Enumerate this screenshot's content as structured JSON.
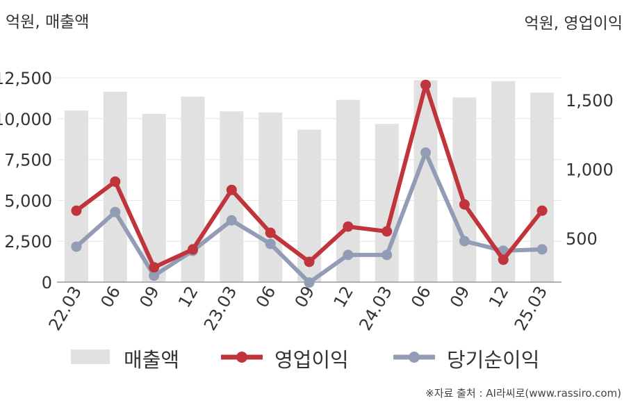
{
  "units": {
    "left": "억원, 매출액",
    "right": "억원, 영업이익"
  },
  "legend": {
    "revenue": "매출액",
    "op_profit": "영업이익",
    "net_profit": "당기순이익"
  },
  "source": "※자료 출처 : AI라씨로(www.rassiro.com)",
  "colors": {
    "bar": "#e1e1e1",
    "op_line": "#c0343b",
    "net_line": "#929cb4",
    "grid": "#e6e6e6",
    "axis": "#999999",
    "text": "#333333"
  },
  "chart_data": {
    "type": "bar",
    "categories": [
      "22.03",
      "06",
      "09",
      "12",
      "23.03",
      "06",
      "09",
      "12",
      "24.03",
      "06",
      "09",
      "12",
      "25.03"
    ],
    "y_left": {
      "ticks": [
        "0",
        "2,500",
        "5,000",
        "7,500",
        "10,000",
        "12,500"
      ],
      "lim": [
        0,
        12500
      ]
    },
    "y_right": {
      "ticks": [
        "500",
        "1,000",
        "1,500"
      ],
      "lim": [
        -100,
        1660
      ]
    },
    "series": [
      {
        "name": "매출액",
        "axis": "left",
        "type": "bar",
        "values": [
          10500,
          11650,
          10300,
          11350,
          10450,
          10380,
          9330,
          11150,
          9680,
          12350,
          11300,
          12300,
          11600
        ]
      },
      {
        "name": "영업이익",
        "axis": "right",
        "type": "line",
        "values": [
          700,
          910,
          290,
          420,
          850,
          540,
          330,
          585,
          550,
          1610,
          745,
          345,
          700
        ]
      },
      {
        "name": "당기순이익",
        "axis": "right",
        "type": "line",
        "values": [
          440,
          690,
          230,
          410,
          630,
          460,
          180,
          380,
          380,
          1120,
          480,
          410,
          420
        ]
      }
    ]
  }
}
